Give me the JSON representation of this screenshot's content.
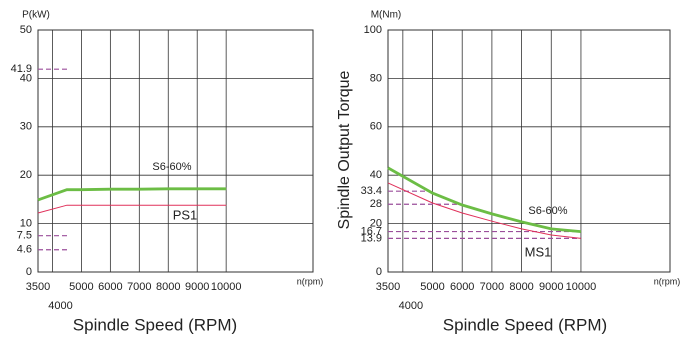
{
  "chart_data": [
    {
      "type": "line",
      "ylabel": "P(kW)",
      "xlabel": "Spindle Speed (RPM)",
      "xunit": "n(rpm)",
      "x": [
        3500,
        4500,
        5000,
        6000,
        7000,
        8000,
        9000,
        10000
      ],
      "series": [
        {
          "name": "S6-60%",
          "color": "#6cbd45",
          "values": [
            14.9,
            17,
            17,
            17.1,
            17.1,
            17.2,
            17.2,
            17.2
          ]
        },
        {
          "name": "PS1",
          "color": "#e0305a",
          "values": [
            12.2,
            13.8,
            13.8,
            13.8,
            13.8,
            13.8,
            13.8,
            13.8
          ]
        }
      ],
      "xlim": [
        3500,
        13000
      ],
      "xticks": [
        3500,
        4000,
        5000,
        6000,
        7000,
        8000,
        9000,
        10000
      ],
      "ylim": [
        0,
        50
      ],
      "yticks": [
        0,
        10,
        20,
        30,
        40,
        50
      ],
      "ref_yticks": [
        4.6,
        7.5,
        41.9
      ],
      "grid": true
    },
    {
      "type": "line",
      "ylabel": "M(Nm)",
      "ytitle": "Spindle Output Torque",
      "xlabel": "Spindle Speed (RPM)",
      "xunit": "n(rpm)",
      "x": [
        3500,
        5000,
        6000,
        7000,
        8000,
        9000,
        10000
      ],
      "series": [
        {
          "name": "S6-60%",
          "color": "#6cbd45",
          "values": [
            43,
            32.6,
            27.7,
            24,
            20.7,
            17.8,
            16.7
          ]
        },
        {
          "name": "MS1",
          "color": "#e0305a",
          "values": [
            36.8,
            28.5,
            24.4,
            21,
            17.8,
            15.3,
            13.9
          ]
        }
      ],
      "xlim": [
        3500,
        13000
      ],
      "xticks": [
        3500,
        4000,
        5000,
        6000,
        7000,
        8000,
        9000,
        10000
      ],
      "ylim": [
        0,
        100
      ],
      "yticks": [
        0,
        20,
        40,
        60,
        80,
        100
      ],
      "ref_yticks": [
        13.9,
        16.7,
        28,
        33.4
      ],
      "grid": true
    }
  ]
}
